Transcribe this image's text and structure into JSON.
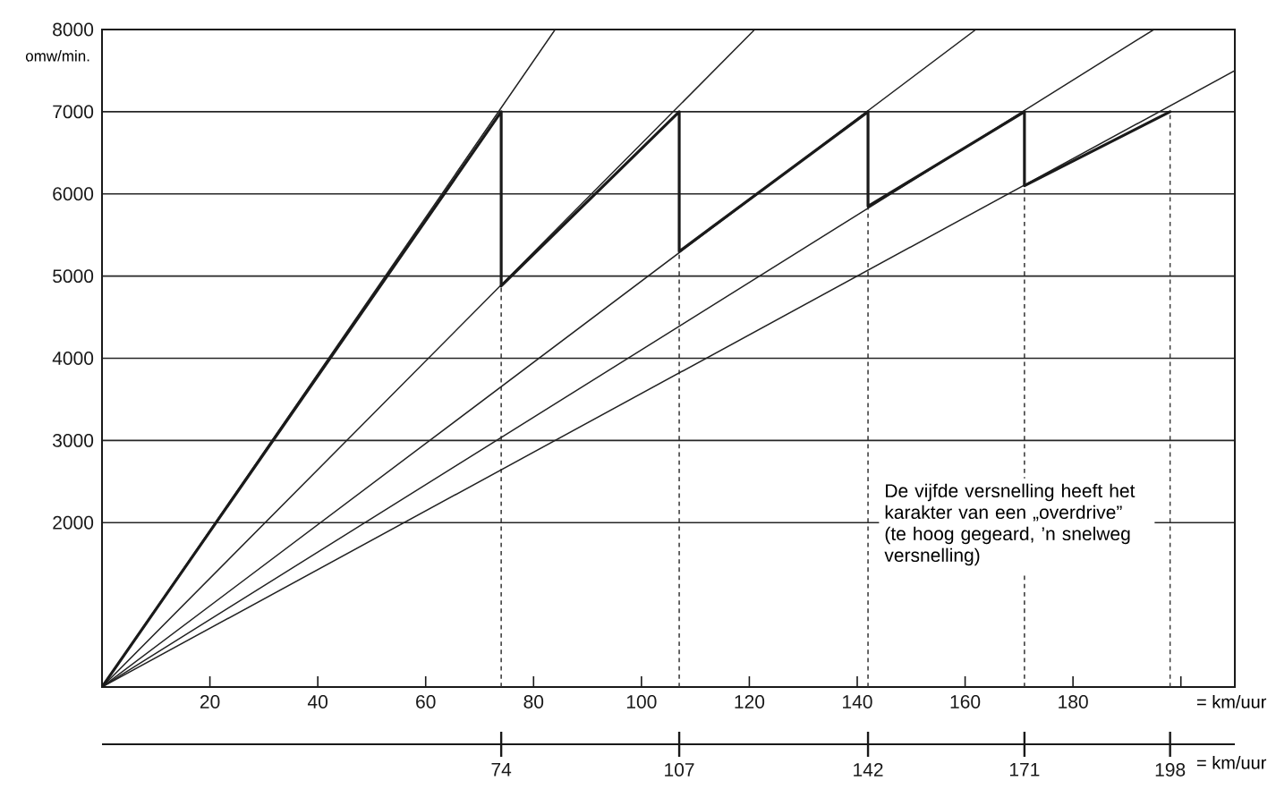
{
  "chart_data": {
    "type": "line",
    "xlabel": "= km/uur",
    "x2label": "= km/uur",
    "ylabel": "omw/min.",
    "xlim": [
      0,
      210
    ],
    "xticks": [
      20,
      40,
      60,
      80,
      100,
      120,
      140,
      160,
      180,
      {
        "value": 200,
        "label": null
      }
    ],
    "x2lim": [
      0,
      210
    ],
    "x2ticks": [
      74,
      107,
      142,
      171,
      198
    ],
    "ylim": [
      0,
      8000
    ],
    "yticks": [
      2000,
      3000,
      4000,
      5000,
      6000,
      7000,
      8000
    ],
    "grid": "y",
    "series": [
      {
        "color": "#222222",
        "x": [
          0,
          84
        ],
        "values": [
          0,
          8000
        ]
      },
      {
        "color": "#222222",
        "x": [
          0,
          121
        ],
        "values": [
          0,
          8000
        ]
      },
      {
        "color": "#222222",
        "x": [
          0,
          162
        ],
        "values": [
          0,
          8000
        ]
      },
      {
        "color": "#222222",
        "x": [
          0,
          195
        ],
        "values": [
          0,
          8000
        ]
      },
      {
        "color": "#222222",
        "x": [
          0,
          210
        ],
        "values": [
          0,
          7500
        ]
      },
      {
        "color": "#1a1a1a",
        "x": [
          0,
          74,
          74,
          107,
          107,
          142,
          142,
          171,
          171,
          198
        ],
        "values": [
          0,
          7000,
          4880,
          7000,
          5300,
          7000,
          5850,
          7000,
          6100,
          7000
        ]
      }
    ],
    "ref_lines": [
      {
        "axis": "x",
        "value": 74,
        "color": "#333333",
        "line_style": "dashed"
      },
      {
        "axis": "x",
        "value": 107,
        "color": "#333333",
        "line_style": "dashed"
      },
      {
        "axis": "x",
        "value": 142,
        "color": "#333333",
        "line_style": "dashed"
      },
      {
        "axis": "x",
        "value": 171,
        "color": "#333333",
        "line_style": "dashed"
      },
      {
        "axis": "x",
        "value": 198,
        "color": "#333333",
        "line_style": "dashed"
      }
    ],
    "annotations": [
      "De vijfde versnelling heeft het karakter van een „overdrive” (te hoog gegeard, ’n snelweg versnelling)"
    ]
  }
}
